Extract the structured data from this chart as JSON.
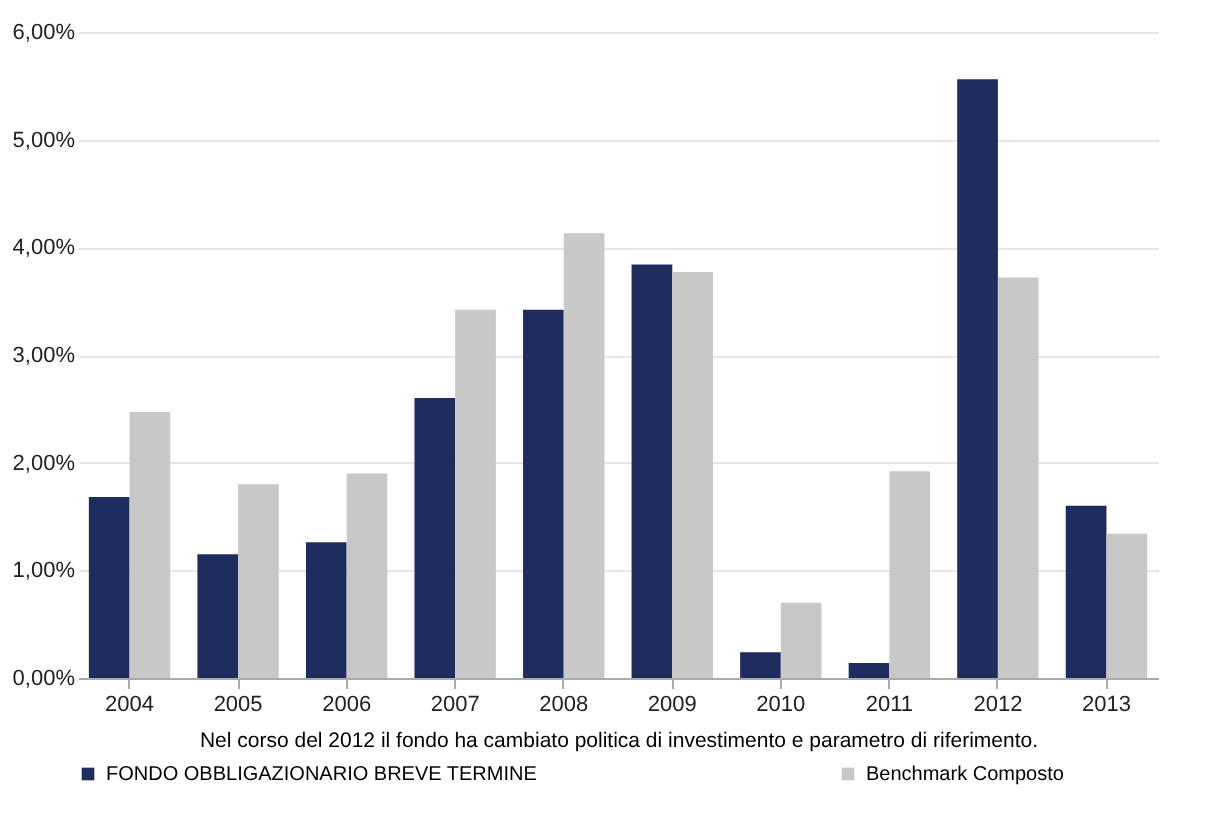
{
  "chart_data": {
    "type": "bar",
    "categories": [
      "2004",
      "2005",
      "2006",
      "2007",
      "2008",
      "2009",
      "2010",
      "2011",
      "2012",
      "2013"
    ],
    "series": [
      {
        "name": "FONDO OBBLIGAZIONARIO BREVE TERMINE",
        "color": "#1f2d5e",
        "values": [
          1.68,
          1.15,
          1.26,
          2.6,
          3.42,
          3.84,
          0.24,
          0.14,
          5.56,
          1.6
        ]
      },
      {
        "name": "Benchmark Composto",
        "color": "#c8c8c8",
        "values": [
          2.47,
          1.8,
          1.9,
          3.42,
          4.13,
          3.77,
          0.7,
          1.92,
          3.72,
          1.34
        ]
      }
    ],
    "ylim": [
      0,
      6
    ],
    "yticks": [
      {
        "value": 0,
        "label": "0,00%"
      },
      {
        "value": 1,
        "label": "1,00%"
      },
      {
        "value": 2,
        "label": "2,00%"
      },
      {
        "value": 3,
        "label": "3,00%"
      },
      {
        "value": 4,
        "label": "4,00%"
      },
      {
        "value": 5,
        "label": "5,00%"
      },
      {
        "value": 6,
        "label": "6,00%"
      }
    ],
    "grid": "y",
    "legend": "bottom",
    "annotations": [
      "Nel corso del 2012 il fondo ha cambiato politica di investimento e parametro di riferimento."
    ]
  }
}
